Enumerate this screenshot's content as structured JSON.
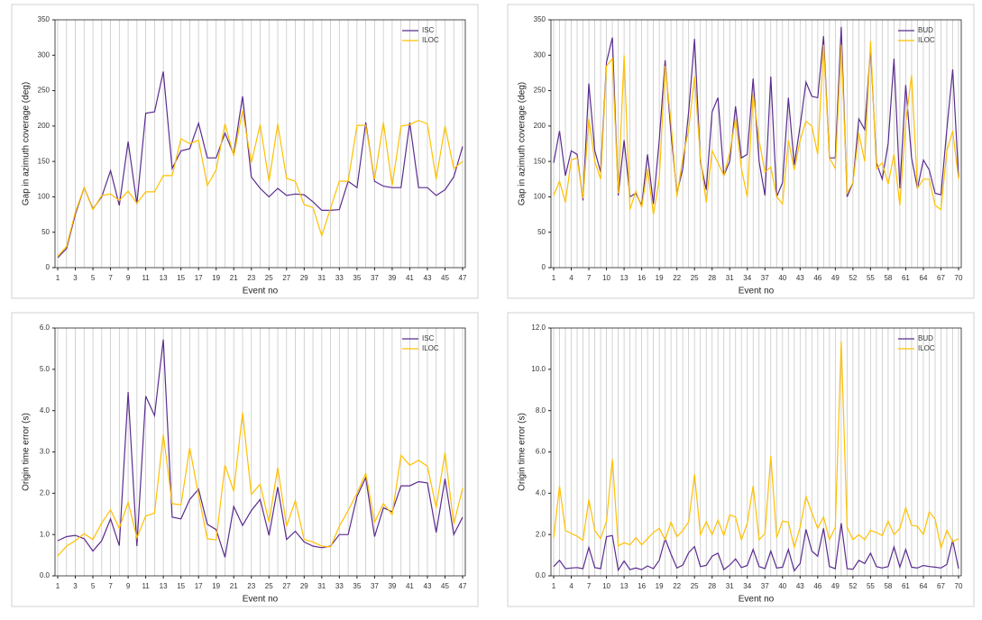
{
  "chart_data": [
    {
      "type": "line",
      "x_label": "Event no",
      "y_label": "Gap in azimuth coverage (deg)",
      "legend": "upper right",
      "grid": "x",
      "x": [
        1,
        2,
        3,
        4,
        5,
        6,
        7,
        8,
        9,
        10,
        11,
        12,
        13,
        14,
        15,
        16,
        17,
        18,
        19,
        20,
        21,
        22,
        23,
        24,
        25,
        26,
        27,
        28,
        29,
        30,
        31,
        32,
        33,
        34,
        35,
        36,
        37,
        38,
        39,
        40,
        41,
        42,
        43,
        44,
        45,
        46,
        47
      ],
      "xlim": [
        1,
        47
      ],
      "xticks": [
        1,
        3,
        5,
        7,
        9,
        11,
        13,
        15,
        17,
        19,
        21,
        23,
        25,
        27,
        29,
        31,
        33,
        35,
        37,
        39,
        41,
        43,
        45,
        47
      ],
      "ylim": [
        0,
        350
      ],
      "yticks": [
        0,
        50,
        100,
        150,
        200,
        250,
        300,
        350
      ],
      "series": [
        {
          "name": "ISC",
          "color": "#5b2c8f",
          "values": [
            14,
            27,
            75,
            113,
            83,
            100,
            137,
            88,
            178,
            90,
            218,
            220,
            277,
            140,
            165,
            168,
            204,
            155,
            155,
            190,
            160,
            242,
            128,
            112,
            100,
            112,
            102,
            104,
            103,
            93,
            81,
            81,
            82,
            122,
            113,
            205,
            122,
            115,
            113,
            113,
            205,
            113,
            113,
            102,
            110,
            128,
            171
          ]
        },
        {
          "name": "ILOC",
          "color": "#ffc000",
          "values": [
            16,
            30,
            78,
            113,
            82,
            102,
            104,
            95,
            108,
            91,
            107,
            107,
            130,
            130,
            182,
            175,
            180,
            116,
            138,
            203,
            158,
            222,
            148,
            202,
            122,
            203,
            126,
            122,
            89,
            85,
            45,
            84,
            122,
            122,
            201,
            201,
            125,
            205,
            116,
            200,
            202,
            208,
            203,
            125,
            200,
            140,
            150
          ]
        }
      ]
    },
    {
      "type": "line",
      "x_label": "Event no",
      "y_label": "Gap in azimuth coverage (deg)",
      "legend": "upper right",
      "grid": "x",
      "x": [
        1,
        2,
        3,
        4,
        5,
        6,
        7,
        8,
        9,
        10,
        11,
        12,
        13,
        14,
        15,
        16,
        17,
        18,
        19,
        20,
        21,
        22,
        23,
        24,
        25,
        26,
        27,
        28,
        29,
        30,
        31,
        32,
        33,
        34,
        35,
        36,
        37,
        38,
        39,
        40,
        41,
        42,
        43,
        44,
        45,
        46,
        47,
        48,
        49,
        50,
        51,
        52,
        53,
        54,
        55,
        56,
        57,
        58,
        59,
        60,
        61,
        62,
        63,
        64,
        65,
        66,
        67,
        68,
        69,
        70
      ],
      "xlim": [
        1,
        70
      ],
      "xticks": [
        1,
        4,
        7,
        10,
        13,
        16,
        19,
        22,
        25,
        28,
        31,
        34,
        37,
        40,
        43,
        46,
        49,
        52,
        55,
        58,
        61,
        64,
        67,
        70
      ],
      "ylim": [
        0,
        350
      ],
      "yticks": [
        0,
        50,
        100,
        150,
        200,
        250,
        300,
        350
      ],
      "series": [
        {
          "name": "BUD",
          "color": "#5b2c8f",
          "values": [
            148,
            193,
            130,
            165,
            160,
            95,
            260,
            165,
            135,
            290,
            325,
            102,
            180,
            100,
            105,
            88,
            160,
            90,
            180,
            293,
            190,
            105,
            140,
            220,
            323,
            150,
            110,
            220,
            240,
            130,
            150,
            228,
            155,
            160,
            267,
            150,
            102,
            270,
            100,
            120,
            240,
            145,
            200,
            262,
            242,
            240,
            327,
            155,
            155,
            340,
            100,
            120,
            210,
            195,
            310,
            148,
            125,
            175,
            295,
            112,
            258,
            155,
            112,
            152,
            138,
            105,
            103,
            195,
            280,
            128
          ]
        },
        {
          "name": "ILOC",
          "color": "#ffc000",
          "values": [
            102,
            122,
            92,
            152,
            155,
            98,
            210,
            150,
            125,
            285,
            295,
            105,
            300,
            82,
            108,
            85,
            140,
            75,
            125,
            285,
            205,
            100,
            155,
            195,
            270,
            155,
            92,
            165,
            148,
            130,
            162,
            210,
            140,
            100,
            245,
            180,
            135,
            142,
            100,
            90,
            180,
            138,
            180,
            207,
            200,
            160,
            315,
            155,
            140,
            315,
            105,
            120,
            190,
            150,
            320,
            140,
            148,
            118,
            160,
            88,
            205,
            272,
            112,
            125,
            125,
            88,
            82,
            165,
            193,
            125
          ]
        }
      ]
    },
    {
      "type": "line",
      "x_label": "Event no",
      "y_label": "Origin time error (s)",
      "legend": "upper right",
      "grid": "x",
      "x": [
        1,
        2,
        3,
        4,
        5,
        6,
        7,
        8,
        9,
        10,
        11,
        12,
        13,
        14,
        15,
        16,
        17,
        18,
        19,
        20,
        21,
        22,
        23,
        24,
        25,
        26,
        27,
        28,
        29,
        30,
        31,
        32,
        33,
        34,
        35,
        36,
        37,
        38,
        39,
        40,
        41,
        42,
        43,
        44,
        45,
        46,
        47
      ],
      "xlim": [
        1,
        47
      ],
      "xticks": [
        1,
        3,
        5,
        7,
        9,
        11,
        13,
        15,
        17,
        19,
        21,
        23,
        25,
        27,
        29,
        31,
        33,
        35,
        37,
        39,
        41,
        43,
        45,
        47
      ],
      "ylim": [
        0,
        6
      ],
      "yticks": [
        {
          "value": 0,
          "label": "0.0"
        },
        {
          "value": 1,
          "label": "1.0"
        },
        {
          "value": 2,
          "label": "2.0"
        },
        {
          "value": 3,
          "label": "3.0"
        },
        {
          "value": 4,
          "label": "4.0"
        },
        {
          "value": 5,
          "label": "5.0"
        },
        {
          "value": 6,
          "label": "6.0"
        }
      ],
      "series": [
        {
          "name": "ISC",
          "color": "#5b2c8f",
          "values": [
            0.85,
            0.95,
            0.98,
            0.9,
            0.6,
            0.85,
            1.38,
            0.73,
            4.45,
            0.72,
            4.35,
            3.88,
            5.72,
            1.42,
            1.38,
            1.85,
            2.1,
            1.25,
            1.12,
            0.45,
            1.68,
            1.22,
            1.58,
            1.85,
            0.98,
            2.15,
            0.88,
            1.08,
            0.82,
            0.72,
            0.68,
            0.72,
            1.0,
            1.0,
            1.92,
            2.38,
            0.95,
            1.65,
            1.55,
            2.18,
            2.18,
            2.28,
            2.25,
            1.05,
            2.35,
            1.0,
            1.42
          ]
        },
        {
          "name": "ILOC",
          "color": "#ffc000",
          "values": [
            0.48,
            0.72,
            0.85,
            1.02,
            0.88,
            1.28,
            1.6,
            1.15,
            1.78,
            0.92,
            1.45,
            1.52,
            3.42,
            1.75,
            1.72,
            3.1,
            1.95,
            0.9,
            0.87,
            2.68,
            2.05,
            3.95,
            1.97,
            2.22,
            1.3,
            2.62,
            1.2,
            1.82,
            0.88,
            0.82,
            0.72,
            0.7,
            1.2,
            1.58,
            2.0,
            2.48,
            1.3,
            1.75,
            1.48,
            2.92,
            2.68,
            2.8,
            2.65,
            1.65,
            2.98,
            1.25,
            2.12
          ]
        }
      ]
    },
    {
      "type": "line",
      "x_label": "Event no",
      "y_label": "Origin time error (s)",
      "legend": "upper right",
      "grid": "x",
      "x": [
        1,
        2,
        3,
        4,
        5,
        6,
        7,
        8,
        9,
        10,
        11,
        12,
        13,
        14,
        15,
        16,
        17,
        18,
        19,
        20,
        21,
        22,
        23,
        24,
        25,
        26,
        27,
        28,
        29,
        30,
        31,
        32,
        33,
        34,
        35,
        36,
        37,
        38,
        39,
        40,
        41,
        42,
        43,
        44,
        45,
        46,
        47,
        48,
        49,
        50,
        51,
        52,
        53,
        54,
        55,
        56,
        57,
        58,
        59,
        60,
        61,
        62,
        63,
        64,
        65,
        66,
        67,
        68,
        69,
        70
      ],
      "xlim": [
        1,
        70
      ],
      "xticks": [
        1,
        4,
        7,
        10,
        13,
        16,
        19,
        22,
        25,
        28,
        31,
        34,
        37,
        40,
        43,
        46,
        49,
        52,
        55,
        58,
        61,
        64,
        67,
        70
      ],
      "ylim": [
        0,
        12
      ],
      "yticks": [
        {
          "value": 0,
          "label": "0.0"
        },
        {
          "value": 2,
          "label": "2.0"
        },
        {
          "value": 4,
          "label": "4.0"
        },
        {
          "value": 6,
          "label": "6.0"
        },
        {
          "value": 8,
          "label": "8.0"
        },
        {
          "value": 10,
          "label": "10.0"
        },
        {
          "value": 12,
          "label": "12.0"
        }
      ],
      "series": [
        {
          "name": "BUD",
          "color": "#5b2c8f",
          "values": [
            0.45,
            0.75,
            0.35,
            0.38,
            0.4,
            0.35,
            1.38,
            0.4,
            0.35,
            1.9,
            1.95,
            0.28,
            0.72,
            0.3,
            0.38,
            0.3,
            0.48,
            0.35,
            0.75,
            1.8,
            1.05,
            0.38,
            0.52,
            1.12,
            1.42,
            0.45,
            0.5,
            0.95,
            1.1,
            0.3,
            0.52,
            0.82,
            0.4,
            0.5,
            1.28,
            0.45,
            0.35,
            1.2,
            0.38,
            0.42,
            1.28,
            0.25,
            0.6,
            2.25,
            1.2,
            0.95,
            2.3,
            0.45,
            0.35,
            2.55,
            0.35,
            0.32,
            0.75,
            0.6,
            1.1,
            0.45,
            0.38,
            0.45,
            1.4,
            0.42,
            1.28,
            0.42,
            0.38,
            0.5,
            0.45,
            0.42,
            0.38,
            0.55,
            1.72,
            0.35
          ]
        },
        {
          "name": "ILOC",
          "color": "#ffc000",
          "values": [
            1.85,
            4.35,
            2.2,
            2.05,
            1.92,
            1.72,
            3.7,
            2.2,
            1.8,
            2.65,
            5.65,
            1.45,
            1.6,
            1.5,
            1.85,
            1.5,
            1.8,
            2.1,
            2.3,
            1.75,
            2.6,
            1.9,
            2.2,
            2.62,
            4.92,
            2.0,
            2.62,
            2.0,
            2.7,
            1.95,
            2.95,
            2.85,
            1.75,
            2.55,
            4.35,
            1.75,
            2.05,
            5.8,
            1.85,
            2.65,
            2.6,
            1.38,
            2.35,
            3.85,
            3.05,
            2.3,
            2.85,
            1.75,
            2.35,
            11.35,
            2.35,
            1.75,
            2.0,
            1.75,
            2.2,
            2.1,
            1.95,
            2.65,
            2.0,
            2.3,
            3.3,
            2.45,
            2.4,
            2.0,
            3.1,
            2.75,
            1.35,
            2.2,
            1.65,
            1.8
          ]
        }
      ]
    }
  ]
}
